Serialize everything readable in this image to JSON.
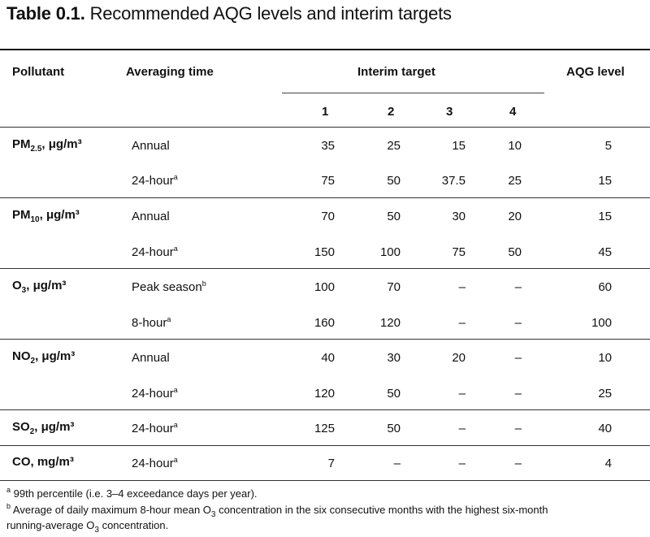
{
  "title": {
    "label": "Table 0.1.",
    "text": "Recommended AQG levels and interim targets"
  },
  "header": {
    "pollutant": "Pollutant",
    "averaging_time": "Averaging time",
    "interim_target": "Interim target",
    "aqg_level": "AQG level",
    "targets": [
      "1",
      "2",
      "3",
      "4"
    ]
  },
  "rows": [
    {
      "pollutant": "PM",
      "sub": "2.5",
      "unit": ", μg/m³",
      "time": "Annual",
      "note": "",
      "it1": "35",
      "it2": "25",
      "it3": "15",
      "it4": "10",
      "aqg": "5"
    },
    {
      "pollutant": "",
      "sub": "",
      "unit": "",
      "time": "24-hour",
      "note": "a",
      "it1": "75",
      "it2": "50",
      "it3": "37.5",
      "it4": "25",
      "aqg": "15"
    },
    {
      "pollutant": "PM",
      "sub": "10",
      "unit": ", μg/m³",
      "time": "Annual",
      "note": "",
      "it1": "70",
      "it2": "50",
      "it3": "30",
      "it4": "20",
      "aqg": "15"
    },
    {
      "pollutant": "",
      "sub": "",
      "unit": "",
      "time": "24-hour",
      "note": "a",
      "it1": "150",
      "it2": "100",
      "it3": "75",
      "it4": "50",
      "aqg": "45"
    },
    {
      "pollutant": "O",
      "sub": "3",
      "unit": ", μg/m³",
      "time": "Peak season",
      "note": "b",
      "it1": "100",
      "it2": "70",
      "it3": "–",
      "it4": "–",
      "aqg": "60"
    },
    {
      "pollutant": "",
      "sub": "",
      "unit": "",
      "time": "8-hour",
      "note": "a",
      "it1": "160",
      "it2": "120",
      "it3": "–",
      "it4": "–",
      "aqg": "100"
    },
    {
      "pollutant": "NO",
      "sub": "2",
      "unit": ", μg/m³",
      "time": "Annual",
      "note": "",
      "it1": "40",
      "it2": "30",
      "it3": "20",
      "it4": "–",
      "aqg": "10"
    },
    {
      "pollutant": "",
      "sub": "",
      "unit": "",
      "time": "24-hour",
      "note": "a",
      "it1": "120",
      "it2": "50",
      "it3": "–",
      "it4": "–",
      "aqg": "25"
    },
    {
      "pollutant": "SO",
      "sub": "2",
      "unit": ", μg/m³",
      "time": "24-hour",
      "note": "a",
      "it1": "125",
      "it2": "50",
      "it3": "–",
      "it4": "–",
      "aqg": "40"
    },
    {
      "pollutant": "CO, mg/m³",
      "sub": "",
      "unit": "",
      "time": "24-hour",
      "note": "a",
      "it1": "7",
      "it2": "–",
      "it3": "–",
      "it4": "–",
      "aqg": "4"
    }
  ],
  "footnotes": {
    "a_mark": "a",
    "a_text": "99th percentile (i.e. 3–4 exceedance days per year).",
    "b_mark": "b",
    "b_line1_pre": "Average of daily maximum 8-hour mean O",
    "b_line1_sub": "3",
    "b_line1_post": " concentration in the six consecutive months with the highest six-month",
    "b_line2_pre": "running-average O",
    "b_line2_sub": "3",
    "b_line2_post": " concentration."
  }
}
